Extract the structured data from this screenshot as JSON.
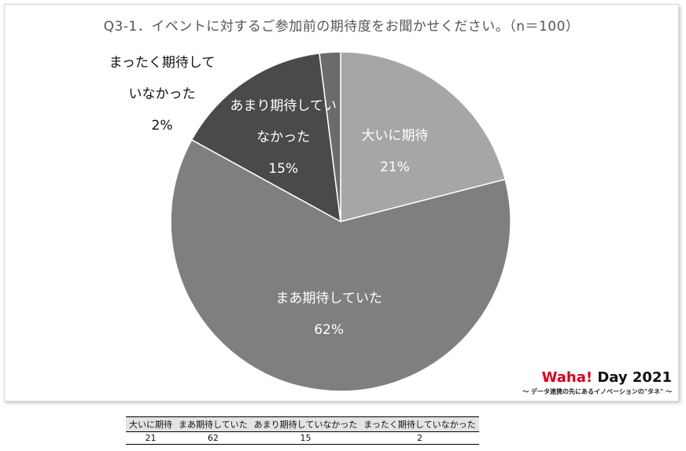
{
  "chart_data": {
    "type": "pie",
    "title": "Q3-1．イベントに対するご参加前の期待度をお聞かせください。（n＝100）",
    "categories": [
      "大いに期待",
      "まあ期待していた",
      "あまり期待していなかった",
      "まったく期待していなかった"
    ],
    "values": [
      21,
      62,
      15,
      2
    ],
    "unit": "%",
    "slice_labels": [
      {
        "lines": [
          "大いに期待",
          "21%"
        ]
      },
      {
        "lines": [
          "まあ期待していた",
          "62%"
        ]
      },
      {
        "lines": [
          "あまり期待してい",
          "なかった",
          "15%"
        ]
      },
      {
        "lines": [
          "まったく期待して",
          "いなかった",
          "2%"
        ]
      }
    ],
    "colors": [
      "#a6a6a6",
      "#7f7f7f",
      "#4a4a4a",
      "#6b6b6b"
    ],
    "start": "12 o'clock, clockwise",
    "legend": "none"
  },
  "brand": {
    "name_red": "Waha!",
    "name_black": " Day 2021",
    "tagline": "～ データ連携の先にあるイノベーションの\"タネ\" ～"
  },
  "table": {
    "headers": [
      "大いに期待",
      "まあ期待していた",
      "あまり期待していなかった",
      "まったく期待していなかった"
    ],
    "values": [
      "21",
      "62",
      "15",
      "2"
    ]
  }
}
